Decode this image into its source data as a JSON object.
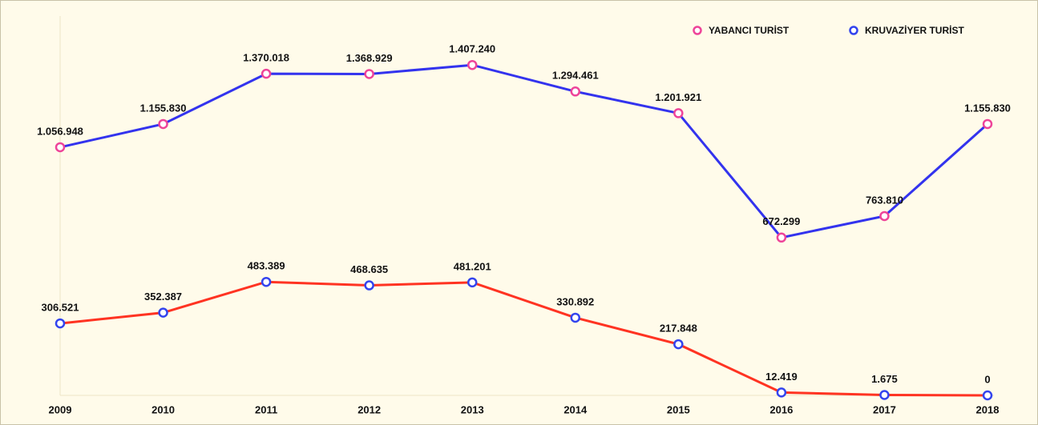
{
  "chart_data": {
    "type": "line",
    "categories": [
      "2009",
      "2010",
      "2011",
      "2012",
      "2013",
      "2014",
      "2015",
      "2016",
      "2017",
      "2018"
    ],
    "series": [
      {
        "name": "YABANCI TURİST",
        "color": "#3333ee",
        "marker_color": "#ee4499",
        "values": [
          1056948,
          1155830,
          1370018,
          1368929,
          1407240,
          1294461,
          1201921,
          672299,
          763810,
          1155830
        ],
        "value_labels": [
          "1.056.948",
          "1.155.830",
          "1.370.018",
          "1.368.929",
          "1.407.240",
          "1.294.461",
          "1.201.921",
          "672.299",
          "763.810",
          "1.155.830"
        ]
      },
      {
        "name": "KRUVAZİYER TURİST",
        "color": "#ff3322",
        "marker_color": "#3344ee",
        "values": [
          306521,
          352387,
          483389,
          468635,
          481201,
          330892,
          217848,
          12419,
          1675,
          0
        ],
        "value_labels": [
          "306.521",
          "352.387",
          "483.389",
          "468.635",
          "481.201",
          "330.892",
          "217.848",
          "12.419",
          "1.675",
          "0"
        ]
      }
    ],
    "ylim": [
      0,
      1650000
    ],
    "legend": "top-right"
  }
}
